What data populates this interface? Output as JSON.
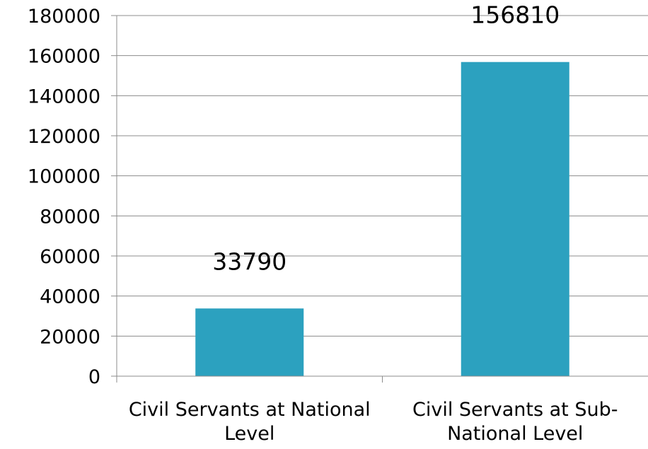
{
  "chart_data": {
    "type": "bar",
    "categories": [
      [
        "Civil Servants at National",
        "Level"
      ],
      [
        "Civil Servants at Sub-",
        "National Level"
      ]
    ],
    "series": [
      {
        "values": [
          33790,
          156810
        ],
        "color": "#2ca1bf"
      }
    ],
    "data_labels": [
      "33790",
      "156810"
    ],
    "ylim": [
      0,
      180000
    ],
    "yticks": [
      0,
      20000,
      40000,
      60000,
      80000,
      100000,
      120000,
      140000,
      160000,
      180000
    ],
    "ytick_labels": [
      "0",
      "20000",
      "40000",
      "60000",
      "80000",
      "100000",
      "120000",
      "140000",
      "160000",
      "180000"
    ],
    "grid": true,
    "legend": "none",
    "title": "",
    "xlabel": "",
    "ylabel": "",
    "colors": {
      "bar": "#2ca1bf",
      "grid": "#8c8c8c",
      "axis": "#8c8c8c"
    }
  }
}
